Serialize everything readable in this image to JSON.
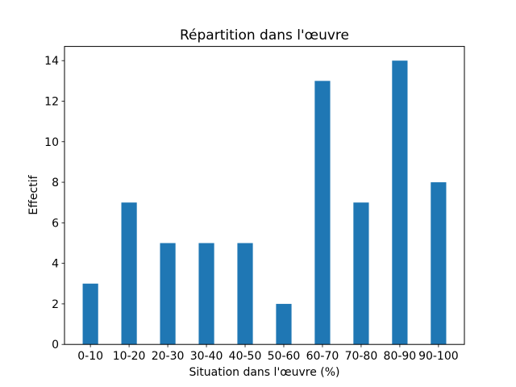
{
  "figure": {
    "background": "#ffffff"
  },
  "chart_data": {
    "type": "bar",
    "title": "Répartition dans l'œuvre",
    "xlabel": "Situation dans l'œuvre (%)",
    "ylabel": "Effectif",
    "categories": [
      "0-10",
      "10-20",
      "20-30",
      "30-40",
      "40-50",
      "50-60",
      "60-70",
      "70-80",
      "80-90",
      "90-100"
    ],
    "values": [
      3,
      7,
      5,
      5,
      5,
      2,
      13,
      7,
      14,
      8
    ],
    "yticks": [
      0,
      2,
      4,
      6,
      8,
      10,
      12,
      14
    ],
    "ylim": [
      0,
      14.7
    ],
    "bar_color": "#1f77b4",
    "axis_color": "#000000",
    "text_color": "#000000",
    "grid": false,
    "legend_position": "none"
  }
}
